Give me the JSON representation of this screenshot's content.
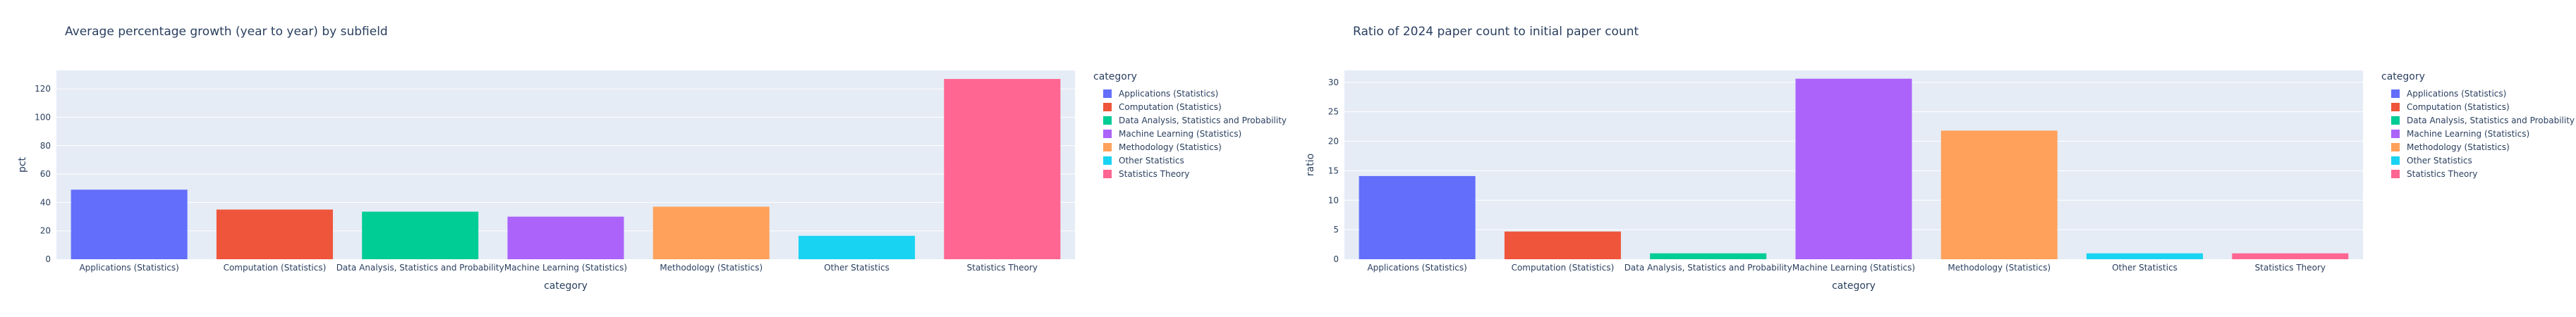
{
  "chart_data": [
    {
      "type": "bar",
      "title": "Average percentage growth (year to year) by subfield",
      "xlabel": "category",
      "ylabel": "pct",
      "categories": [
        "Applications (Statistics)",
        "Computation (Statistics)",
        "Data Analysis, Statistics and Probability",
        "Machine Learning (Statistics)",
        "Methodology (Statistics)",
        "Other Statistics",
        "Statistics Theory"
      ],
      "values": [
        49,
        35,
        33.5,
        30,
        37,
        16.5,
        127
      ],
      "ylim": [
        0,
        133
      ],
      "yticks": [
        0,
        20,
        40,
        60,
        80,
        100,
        120
      ],
      "legend_title": "category",
      "legend_position": "right",
      "grid": true
    },
    {
      "type": "bar",
      "title": "Ratio of 2024 paper count to initial paper count",
      "xlabel": "category",
      "ylabel": "ratio",
      "categories": [
        "Applications (Statistics)",
        "Computation (Statistics)",
        "Data Analysis, Statistics and Probability",
        "Machine Learning (Statistics)",
        "Methodology (Statistics)",
        "Other Statistics",
        "Statistics Theory"
      ],
      "values": [
        14.1,
        4.7,
        1.0,
        30.6,
        21.8,
        1.0,
        1.0
      ],
      "ylim": [
        0,
        32
      ],
      "yticks": [
        0,
        5,
        10,
        15,
        20,
        25,
        30
      ],
      "legend_title": "category",
      "legend_position": "right",
      "grid": true
    }
  ],
  "colors": [
    "#636efa",
    "#ef553b",
    "#00cc96",
    "#ab63fa",
    "#ffa15a",
    "#19d3f3",
    "#ff6692"
  ]
}
